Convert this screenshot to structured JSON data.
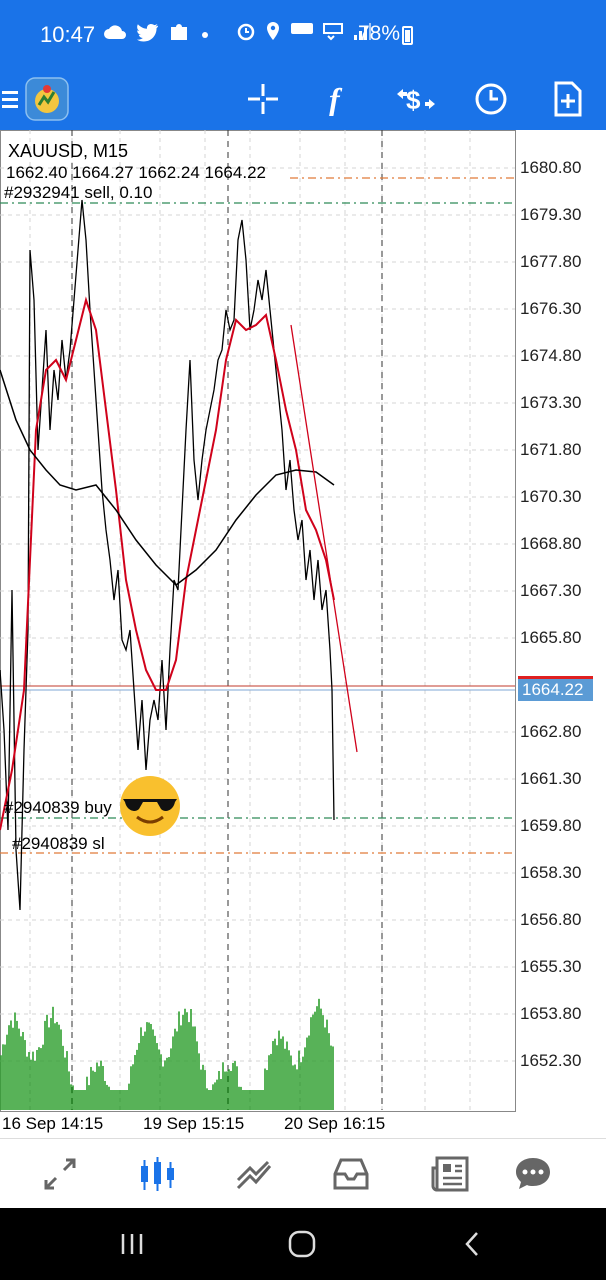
{
  "status": {
    "time": "10:47",
    "icons_left": [
      "cloud-icon",
      "twitter-icon",
      "puzzle-icon",
      "dot-icon"
    ],
    "icons_right": [
      "alarm-icon",
      "location-icon",
      "hd-voice-icon",
      "lte-icon",
      "signal-icon"
    ],
    "battery_text": "78%"
  },
  "toolbar": {
    "items": [
      "menu-icon",
      "app-logo",
      "crosshair-icon",
      "function-icon",
      "trade-icon",
      "clock-icon",
      "new-document-icon"
    ]
  },
  "chart": {
    "symbol": "XAUUSD, M15",
    "ohlc": "1662.40 1664.27 1662.24 1664.22",
    "sell_order": "#2932941 sell, 0.10",
    "buy_order": "#2940839 buy",
    "sl_order": "#2940839 sl",
    "current_price": "1664.22",
    "price_labels": [
      "1680.80",
      "1679.30",
      "1677.80",
      "1676.30",
      "1674.80",
      "1673.30",
      "1671.80",
      "1670.30",
      "1668.80",
      "1667.30",
      "1665.80",
      "1662.80",
      "1661.30",
      "1659.80",
      "1658.30",
      "1656.80",
      "1655.30",
      "1653.80",
      "1652.30"
    ],
    "date_labels": [
      "16 Sep 14:15",
      "19 Sep 15:15",
      "20 Sep 16:15"
    ],
    "colors": {
      "price_line": "#000000",
      "ma_fast": "#d0021b",
      "ma_slow": "#000000",
      "volume": "#2e9e2e",
      "sell_level": "#2e8b57",
      "sl_level": "#e07b39",
      "current_price_bg": "#5b9bd5"
    }
  },
  "tabs": [
    "quotes-icon",
    "chart-icon",
    "trade-icon",
    "history-icon",
    "news-icon",
    "messages-icon"
  ],
  "active_tab": "chart-icon",
  "nav": [
    "recent-apps-icon",
    "home-icon",
    "back-icon"
  ]
}
